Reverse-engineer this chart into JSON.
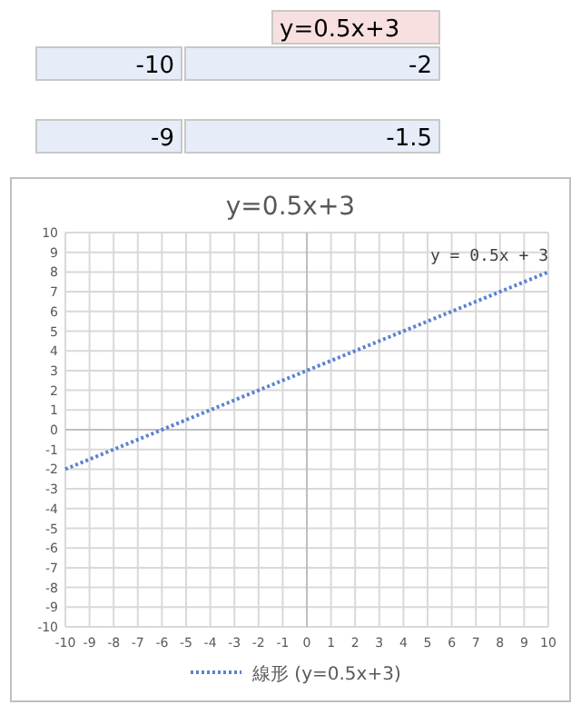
{
  "chart_data": {
    "type": "line",
    "title": "y=0.5x+3",
    "annotations": [
      "y=0.5x+3",
      "-10",
      "-2",
      "-9",
      "-1.5",
      {
        "text": "y = 0.5x + 3",
        "x": 10,
        "y": 8
      }
    ],
    "series": [
      {
        "name": "線形 (y=0.5x+3)",
        "color": "#5b82d2",
        "x": [
          -10,
          10
        ],
        "values": [
          -2,
          8
        ],
        "line_style": "dotted"
      }
    ],
    "xlim": [
      -10,
      10
    ],
    "xticks": [
      -10,
      -9,
      -8,
      -7,
      -6,
      -5,
      -4,
      -3,
      -2,
      -1,
      0,
      1,
      2,
      3,
      4,
      5,
      6,
      7,
      8,
      9,
      10
    ],
    "ylim": [
      -10,
      10
    ],
    "yticks": [
      -10,
      -9,
      -8,
      -7,
      -6,
      -5,
      -4,
      -3,
      -2,
      -1,
      0,
      1,
      2,
      3,
      4,
      5,
      6,
      7,
      8,
      9,
      10
    ],
    "grid": true,
    "legend": "bottom",
    "marker": "none"
  }
}
